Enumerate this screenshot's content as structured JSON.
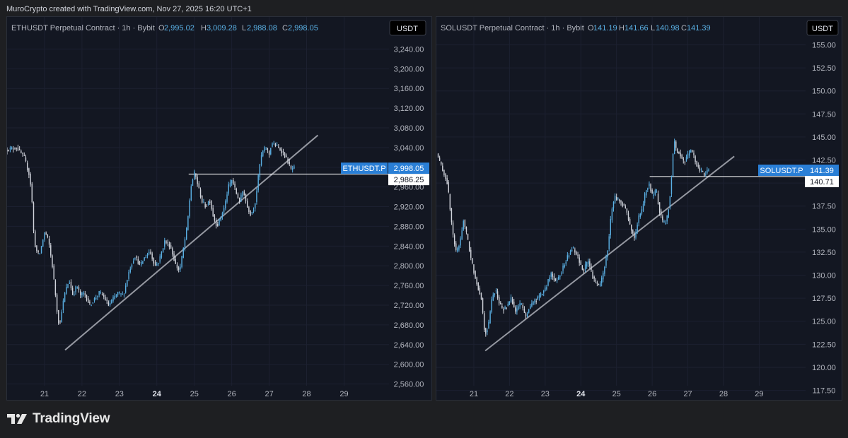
{
  "caption": "MuroCrypto created with TradingView.com, Nov 27, 2025 16:20 UTC+1",
  "brand": "TradingView",
  "colors": {
    "background": "#131722",
    "up": "#5ab0e4",
    "down": "#d1d4dc",
    "trendline": "#9598a1",
    "hline": "#ffffff",
    "badge": "#2a7fd6",
    "text": "#b2b5be"
  },
  "chart_data": [
    {
      "type": "candlestick",
      "title": "ETHUSDT Perpetual Contract · 1h · Bybit",
      "ohlc": {
        "O": "2,995.02",
        "H": "3,009.28",
        "L": "2,988.08",
        "C": "2,998.05"
      },
      "currency": "USDT",
      "ylim": [
        2545,
        3265
      ],
      "yticks": [
        "3,240.00",
        "3,200.00",
        "3,160.00",
        "3,120.00",
        "3,080.00",
        "3,040.00",
        "3,000.00",
        "2,960.00",
        "2,920.00",
        "2,880.00",
        "2,840.00",
        "2,800.00",
        "2,760.00",
        "2,720.00",
        "2,680.00",
        "2,640.00",
        "2,600.00",
        "2,560.00"
      ],
      "ytick_values": [
        3240,
        3200,
        3160,
        3120,
        3080,
        3040,
        3000,
        2960,
        2920,
        2880,
        2840,
        2800,
        2760,
        2720,
        2680,
        2640,
        2600,
        2560
      ],
      "xlim": [
        20.0,
        30.2
      ],
      "xticks": [
        "21",
        "22",
        "23",
        "24",
        "25",
        "26",
        "27",
        "28",
        "29"
      ],
      "xtick_values": [
        21,
        22,
        23,
        24,
        25,
        26,
        27,
        28,
        29
      ],
      "bold_xtick": "24",
      "path": [
        [
          20.0,
          3035
        ],
        [
          20.3,
          3040
        ],
        [
          20.5,
          3020
        ],
        [
          20.65,
          2980
        ],
        [
          20.7,
          2940
        ],
        [
          20.75,
          2870
        ],
        [
          20.8,
          2835
        ],
        [
          20.9,
          2820
        ],
        [
          21.05,
          2870
        ],
        [
          21.15,
          2850
        ],
        [
          21.25,
          2800
        ],
        [
          21.35,
          2730
        ],
        [
          21.4,
          2690
        ],
        [
          21.45,
          2680
        ],
        [
          21.5,
          2710
        ],
        [
          21.6,
          2750
        ],
        [
          21.7,
          2770
        ],
        [
          21.8,
          2740
        ],
        [
          21.9,
          2760
        ],
        [
          22.0,
          2740
        ],
        [
          22.1,
          2745
        ],
        [
          22.25,
          2720
        ],
        [
          22.4,
          2735
        ],
        [
          22.5,
          2745
        ],
        [
          22.6,
          2740
        ],
        [
          22.75,
          2720
        ],
        [
          22.85,
          2730
        ],
        [
          23.0,
          2745
        ],
        [
          23.15,
          2740
        ],
        [
          23.3,
          2790
        ],
        [
          23.45,
          2820
        ],
        [
          23.6,
          2800
        ],
        [
          23.7,
          2815
        ],
        [
          23.85,
          2830
        ],
        [
          24.0,
          2800
        ],
        [
          24.1,
          2810
        ],
        [
          24.25,
          2850
        ],
        [
          24.4,
          2840
        ],
        [
          24.55,
          2800
        ],
        [
          24.65,
          2790
        ],
        [
          24.75,
          2835
        ],
        [
          24.85,
          2880
        ],
        [
          24.95,
          2960
        ],
        [
          25.05,
          2990
        ],
        [
          25.15,
          2960
        ],
        [
          25.25,
          2930
        ],
        [
          25.35,
          2920
        ],
        [
          25.45,
          2935
        ],
        [
          25.55,
          2900
        ],
        [
          25.65,
          2880
        ],
        [
          25.75,
          2900
        ],
        [
          25.85,
          2920
        ],
        [
          25.95,
          2960
        ],
        [
          26.05,
          2975
        ],
        [
          26.15,
          2950
        ],
        [
          26.25,
          2930
        ],
        [
          26.35,
          2955
        ],
        [
          26.45,
          2920
        ],
        [
          26.55,
          2905
        ],
        [
          26.65,
          2920
        ],
        [
          26.72,
          2960
        ],
        [
          26.78,
          3000
        ],
        [
          26.85,
          3030
        ],
        [
          26.95,
          3040
        ],
        [
          27.05,
          3025
        ],
        [
          27.1,
          3050
        ],
        [
          27.2,
          3045
        ],
        [
          27.35,
          3035
        ],
        [
          27.45,
          3025
        ],
        [
          27.55,
          3010
        ],
        [
          27.62,
          2995
        ],
        [
          27.68,
          2998
        ]
      ],
      "trendline": [
        [
          21.55,
          2629
        ],
        [
          28.3,
          3065
        ]
      ],
      "level_line": {
        "from": 24.85,
        "to": 30.2,
        "value": 2986.25
      },
      "price_label": {
        "symbol": "ETHUSDT.P",
        "value": "2,998.05",
        "numeric": 2998.05
      },
      "level_label": {
        "value": "2,986.25"
      }
    },
    {
      "type": "candlestick",
      "title": "SOLUSDT Perpetual Contract · 1h · Bybit",
      "ohlc": {
        "O": "141.19",
        "H": "141.66",
        "L": "140.98",
        "C": "141.39"
      },
      "currency": "USDT",
      "ylim": [
        116.7,
        156.8
      ],
      "yticks": [
        "155.00",
        "152.50",
        "150.00",
        "147.50",
        "145.00",
        "142.50",
        "140.00",
        "137.50",
        "135.00",
        "132.50",
        "130.00",
        "127.50",
        "125.00",
        "122.50",
        "120.00",
        "117.50"
      ],
      "ytick_values": [
        155,
        152.5,
        150,
        147.5,
        145,
        142.5,
        140,
        137.5,
        135,
        132.5,
        130,
        127.5,
        125,
        122.5,
        120,
        117.5
      ],
      "xlim": [
        19.95,
        30.3
      ],
      "xticks": [
        "21",
        "22",
        "23",
        "24",
        "25",
        "26",
        "27",
        "28",
        "29"
      ],
      "xtick_values": [
        21,
        22,
        23,
        24,
        25,
        26,
        27,
        28,
        29
      ],
      "bold_xtick": "24",
      "path": [
        [
          20.0,
          143.2
        ],
        [
          20.15,
          141.6
        ],
        [
          20.3,
          140.0
        ],
        [
          20.45,
          134.5
        ],
        [
          20.55,
          132.4
        ],
        [
          20.65,
          133.5
        ],
        [
          20.75,
          136.0
        ],
        [
          20.85,
          134.2
        ],
        [
          20.95,
          132.0
        ],
        [
          21.1,
          129.5
        ],
        [
          21.25,
          127.5
        ],
        [
          21.35,
          123.6
        ],
        [
          21.45,
          124.5
        ],
        [
          21.55,
          127.5
        ],
        [
          21.65,
          128.5
        ],
        [
          21.75,
          127.0
        ],
        [
          21.85,
          126.2
        ],
        [
          22.0,
          126.8
        ],
        [
          22.1,
          127.5
        ],
        [
          22.2,
          126.0
        ],
        [
          22.35,
          127.0
        ],
        [
          22.5,
          125.5
        ],
        [
          22.6,
          126.5
        ],
        [
          22.75,
          127.2
        ],
        [
          22.9,
          127.8
        ],
        [
          23.05,
          128.5
        ],
        [
          23.2,
          130.2
        ],
        [
          23.35,
          129.3
        ],
        [
          23.5,
          130.5
        ],
        [
          23.65,
          131.8
        ],
        [
          23.8,
          133.0
        ],
        [
          23.95,
          132.0
        ],
        [
          24.1,
          130.5
        ],
        [
          24.25,
          131.5
        ],
        [
          24.4,
          129.5
        ],
        [
          24.55,
          128.8
        ],
        [
          24.65,
          129.8
        ],
        [
          24.8,
          133.0
        ],
        [
          24.9,
          137.0
        ],
        [
          25.0,
          138.5
        ],
        [
          25.15,
          138.0
        ],
        [
          25.3,
          137.2
        ],
        [
          25.45,
          135.0
        ],
        [
          25.55,
          134.0
        ],
        [
          25.65,
          136.2
        ],
        [
          25.75,
          137.0
        ],
        [
          25.85,
          139.0
        ],
        [
          25.95,
          140.0
        ],
        [
          26.05,
          138.5
        ],
        [
          26.15,
          139.2
        ],
        [
          26.25,
          137.0
        ],
        [
          26.35,
          135.5
        ],
        [
          26.45,
          136.0
        ],
        [
          26.52,
          137.8
        ],
        [
          26.6,
          141.5
        ],
        [
          26.65,
          144.8
        ],
        [
          26.72,
          143.5
        ],
        [
          26.82,
          143.2
        ],
        [
          26.92,
          142.2
        ],
        [
          27.02,
          142.8
        ],
        [
          27.12,
          143.6
        ],
        [
          27.2,
          143.0
        ],
        [
          27.3,
          141.8
        ],
        [
          27.4,
          141.4
        ],
        [
          27.5,
          140.9
        ],
        [
          27.6,
          141.4
        ]
      ],
      "trendline": [
        [
          21.32,
          121.8
        ],
        [
          28.3,
          142.9
        ]
      ],
      "level_line": {
        "from": 25.93,
        "to": 30.3,
        "value": 140.71
      },
      "price_label": {
        "symbol": "SOLUSDT.P",
        "value": "141.39",
        "numeric": 141.39
      },
      "level_label": {
        "value": "140.71"
      }
    }
  ]
}
